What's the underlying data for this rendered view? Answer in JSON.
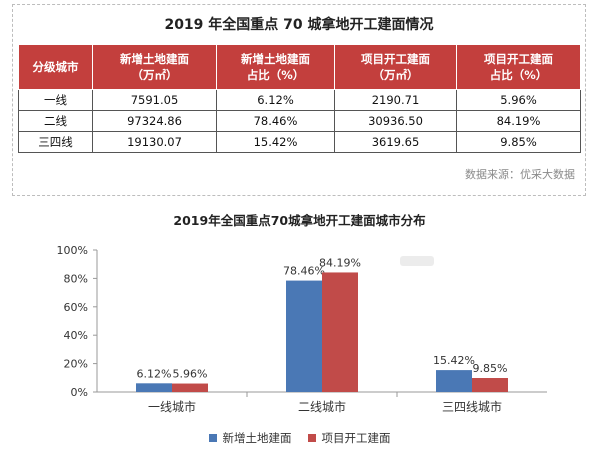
{
  "table": {
    "title": "2019 年全国重点 70 城拿地开工建面情况",
    "headers": [
      [
        "分级城市"
      ],
      [
        "新增土地建面",
        "（万㎡）"
      ],
      [
        "新增土地建面",
        "占比（%）"
      ],
      [
        "项目开工建面",
        "（万㎡）"
      ],
      [
        "项目开工建面",
        "占比（%）"
      ]
    ],
    "rows": [
      [
        "一线",
        "7591.05",
        "6.12%",
        "2190.71",
        "5.96%"
      ],
      [
        "二线",
        "97324.86",
        "78.46%",
        "30936.50",
        "84.19%"
      ],
      [
        "三四线",
        "19130.07",
        "15.42%",
        "3619.65",
        "9.85%"
      ]
    ],
    "source": "数据来源：优采大数据",
    "header_color": "#c33f3d"
  },
  "chart_data": {
    "type": "bar",
    "title": "2019年全国重点70城拿地开工建面城市分布",
    "categories": [
      "一线城市",
      "二线城市",
      "三四线城市"
    ],
    "series": [
      {
        "name": "新增土地建面",
        "values": [
          6.12,
          78.46,
          15.42
        ],
        "labels": [
          "6.12%",
          "78.46%",
          "15.42%"
        ],
        "color": "#4a78b5"
      },
      {
        "name": "项目开工建面",
        "values": [
          5.96,
          84.19,
          9.85
        ],
        "labels": [
          "5.96%",
          "84.19%",
          "9.85%"
        ],
        "color": "#c14b49"
      }
    ],
    "ylim": [
      0,
      100
    ],
    "yticks": [
      "0%",
      "20%",
      "40%",
      "60%",
      "80%",
      "100%"
    ],
    "grid": false,
    "legend": "bottom"
  }
}
